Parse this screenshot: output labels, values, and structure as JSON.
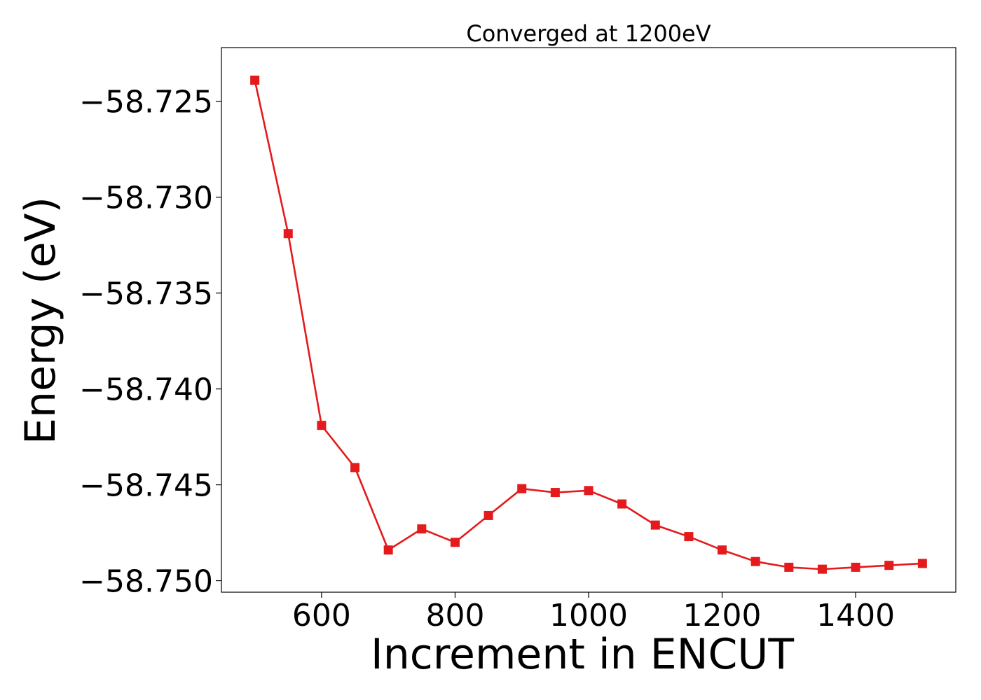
{
  "chart_data": {
    "type": "line",
    "title": "Converged at 1200eV",
    "xlabel": "Increment in ENCUT",
    "ylabel": "Energy (eV)",
    "xlim": [
      450,
      1550
    ],
    "ylim": [
      -58.7506,
      -58.7222
    ],
    "x_ticks": [
      600,
      800,
      1000,
      1200,
      1400
    ],
    "x_tick_labels": [
      "600",
      "800",
      "1000",
      "1200",
      "1400"
    ],
    "y_ticks": [
      -58.725,
      -58.73,
      -58.735,
      -58.74,
      -58.745,
      -58.75
    ],
    "y_tick_labels": [
      "−58.725",
      "−58.730",
      "−58.735",
      "−58.740",
      "−58.745",
      "−58.750"
    ],
    "grid": false,
    "series": [
      {
        "color": "#e41a1c",
        "marker": "square",
        "x": [
          500,
          550,
          600,
          650,
          700,
          750,
          800,
          850,
          900,
          950,
          1000,
          1050,
          1100,
          1150,
          1200,
          1250,
          1300,
          1350,
          1400,
          1450,
          1500
        ],
        "y": [
          -58.7239,
          -58.7319,
          -58.7419,
          -58.7441,
          -58.7484,
          -58.7473,
          -58.748,
          -58.7466,
          -58.7452,
          -58.7454,
          -58.7453,
          -58.746,
          -58.7471,
          -58.7477,
          -58.7484,
          -58.749,
          -58.7493,
          -58.7494,
          -58.7493,
          -58.7492,
          -58.7491
        ]
      }
    ]
  }
}
